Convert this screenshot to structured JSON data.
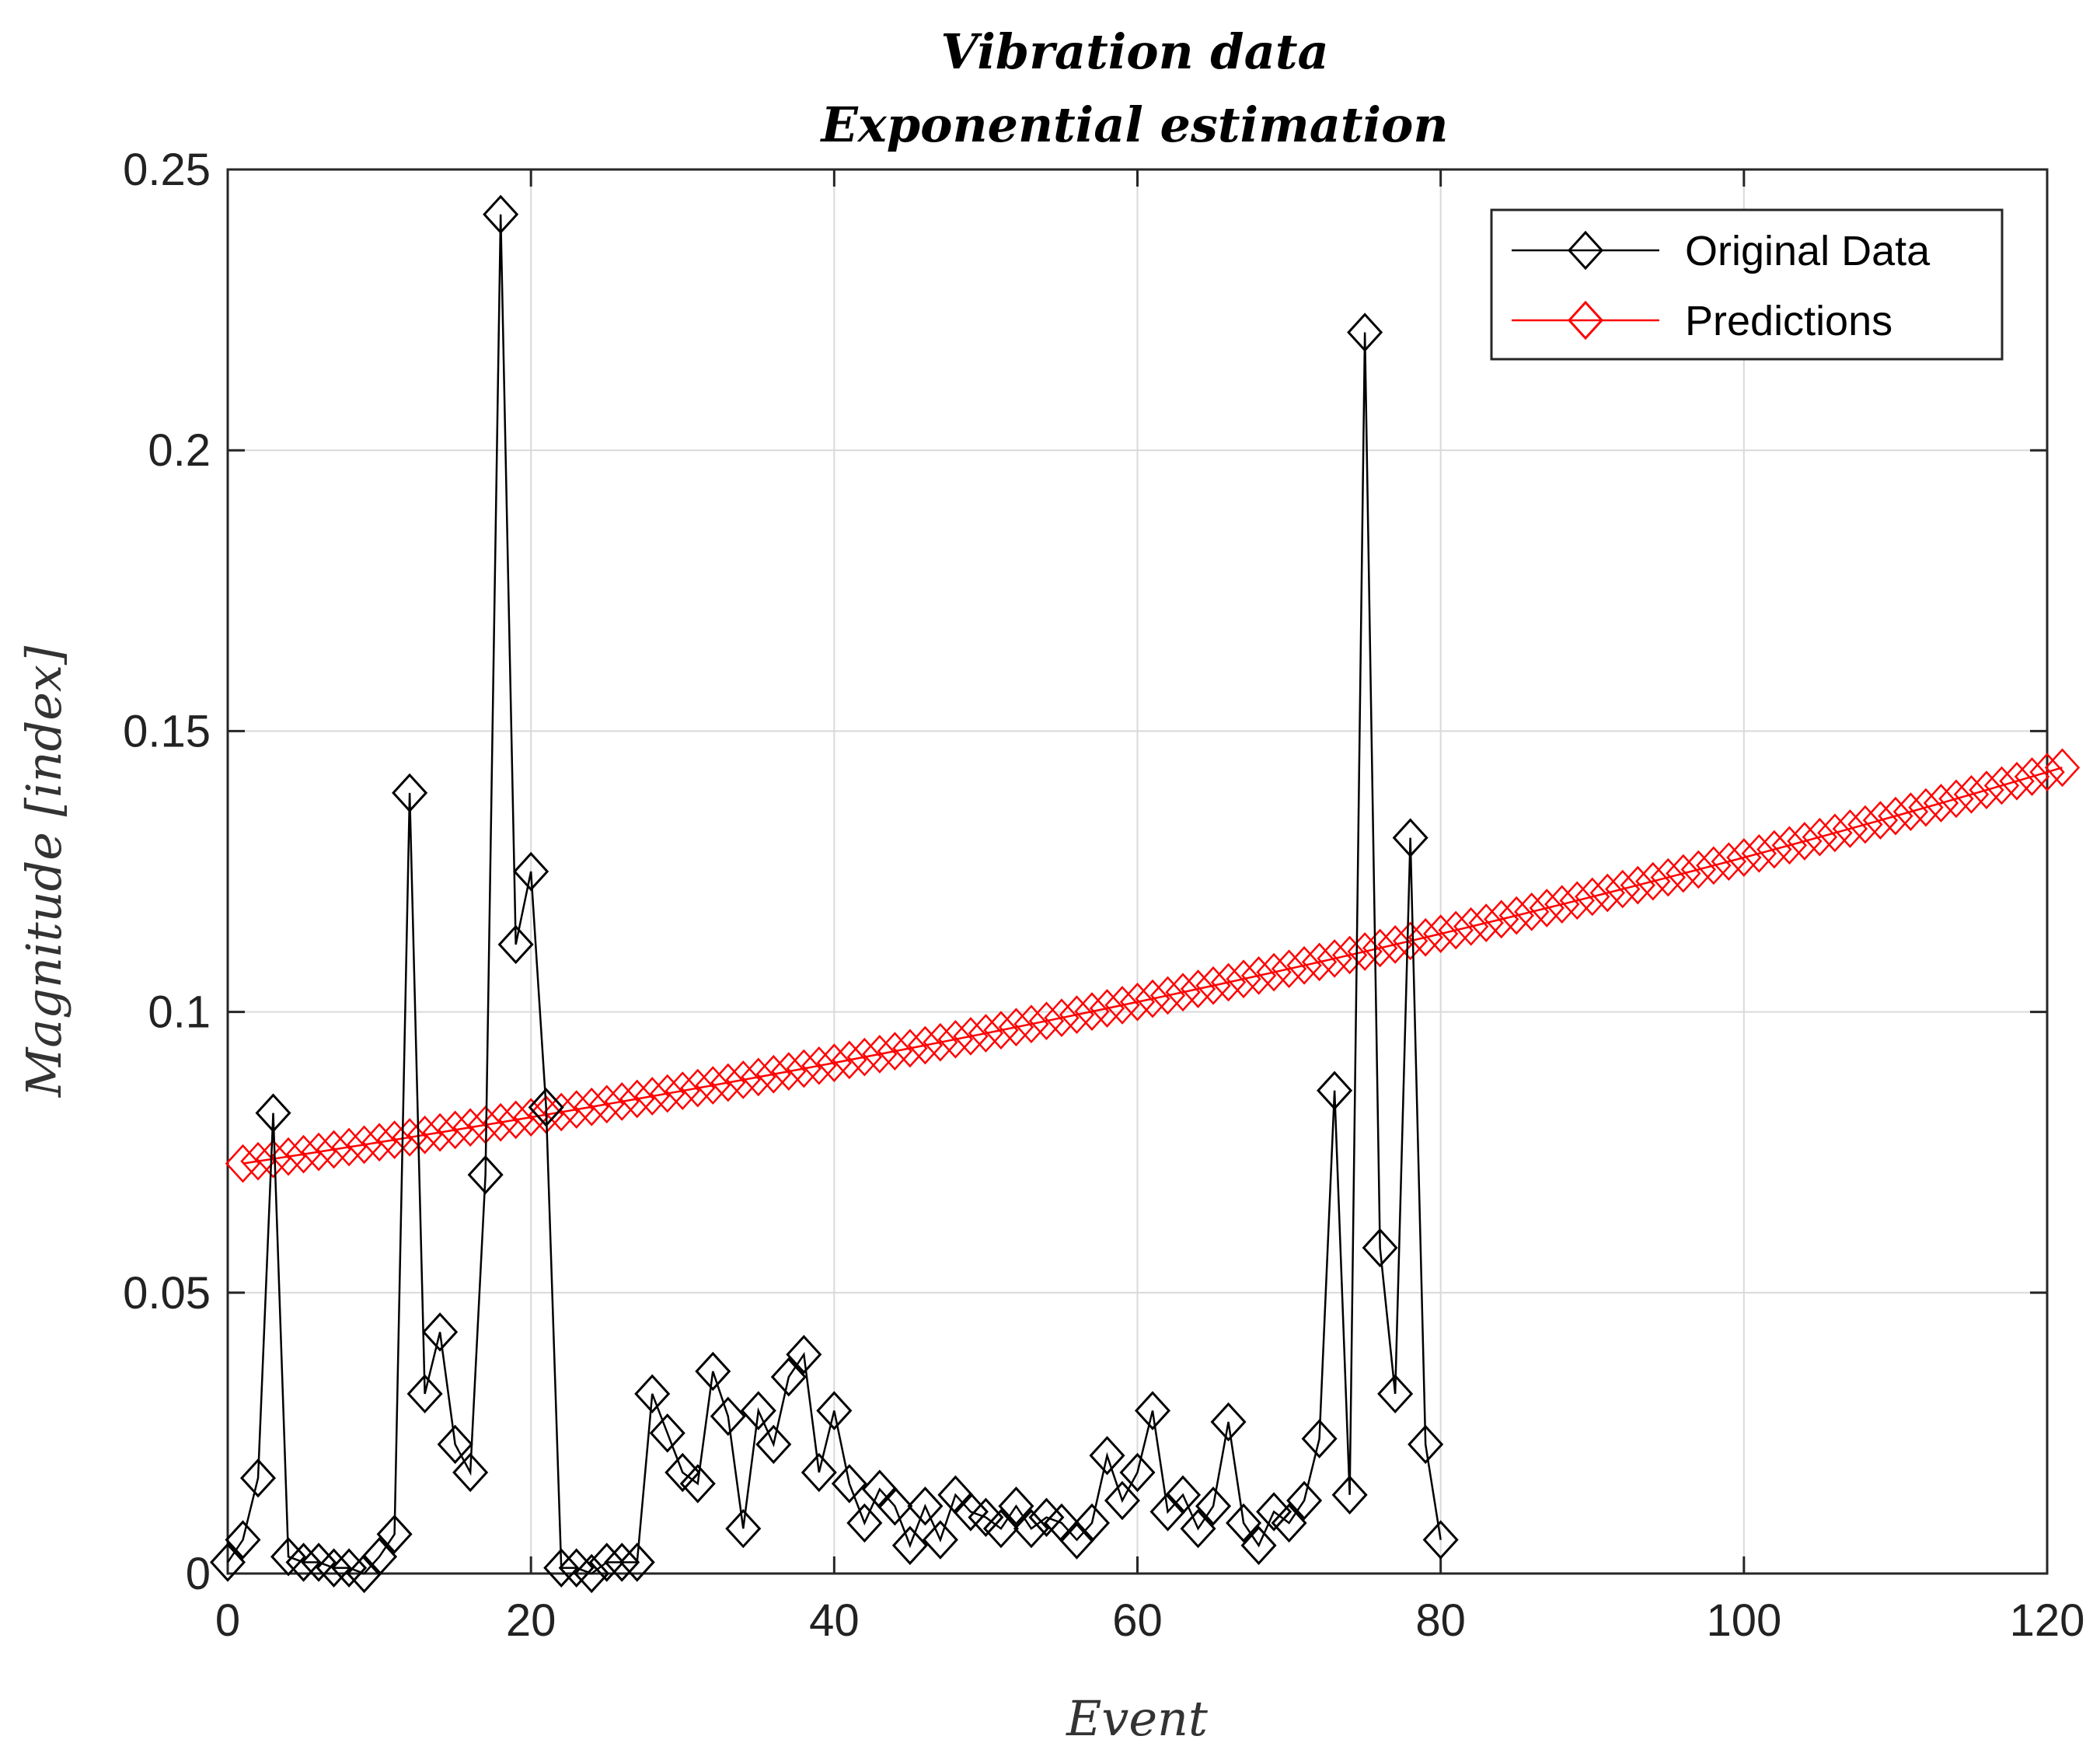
{
  "chart_data": {
    "type": "line",
    "title_lines": [
      "Vibration data",
      "Exponential estimation"
    ],
    "xlabel": "Event",
    "ylabel": "Magnitude [index]",
    "xlim": [
      0,
      120
    ],
    "ylim": [
      0,
      0.25
    ],
    "xticks": [
      0,
      20,
      40,
      60,
      80,
      100,
      120
    ],
    "yticks": [
      0,
      0.05,
      0.1,
      0.15,
      0.2,
      0.25
    ],
    "ytick_labels": [
      "0",
      "0.05",
      "0.1",
      "0.15",
      "0.2",
      "0.25"
    ],
    "grid": true,
    "legend_position": "top-right",
    "series": [
      {
        "name": "Original Data",
        "color": "#000000",
        "marker": "diamond",
        "x": [
          0,
          1,
          2,
          3,
          4,
          5,
          6,
          7,
          8,
          9,
          10,
          11,
          12,
          13,
          14,
          15,
          16,
          17,
          18,
          19,
          20,
          21,
          22,
          23,
          24,
          25,
          26,
          27,
          28,
          29,
          30,
          31,
          32,
          33,
          34,
          35,
          36,
          37,
          38,
          39,
          40,
          41,
          42,
          43,
          44,
          45,
          46,
          47,
          48,
          49,
          50,
          51,
          52,
          53,
          54,
          55,
          56,
          57,
          58,
          59,
          60,
          61,
          62,
          63,
          64,
          65,
          66,
          67,
          68,
          69,
          70,
          71,
          72,
          73,
          74,
          75,
          76,
          77,
          78,
          79,
          80
        ],
        "values": [
          0.002,
          0.006,
          0.017,
          0.082,
          0.003,
          0.002,
          0.002,
          0.001,
          0.001,
          0.0,
          0.003,
          0.007,
          0.139,
          0.032,
          0.043,
          0.023,
          0.018,
          0.071,
          0.242,
          0.112,
          0.125,
          0.083,
          0.001,
          0.001,
          0.0,
          0.002,
          0.002,
          0.002,
          0.032,
          0.025,
          0.018,
          0.016,
          0.036,
          0.028,
          0.008,
          0.029,
          0.023,
          0.035,
          0.039,
          0.018,
          0.029,
          0.016,
          0.009,
          0.015,
          0.012,
          0.005,
          0.012,
          0.006,
          0.014,
          0.011,
          0.01,
          0.008,
          0.012,
          0.008,
          0.01,
          0.009,
          0.006,
          0.009,
          0.021,
          0.013,
          0.018,
          0.029,
          0.011,
          0.014,
          0.008,
          0.012,
          0.027,
          0.009,
          0.005,
          0.011,
          0.009,
          0.013,
          0.024,
          0.086,
          0.014,
          0.221,
          0.058,
          0.032,
          0.131,
          0.023,
          0.006
        ]
      },
      {
        "name": "Predictions",
        "color": "#ff0000",
        "marker": "diamond",
        "x_range": [
          1,
          121
        ],
        "start_value": 0.073,
        "end_value": 0.1435
      }
    ]
  }
}
